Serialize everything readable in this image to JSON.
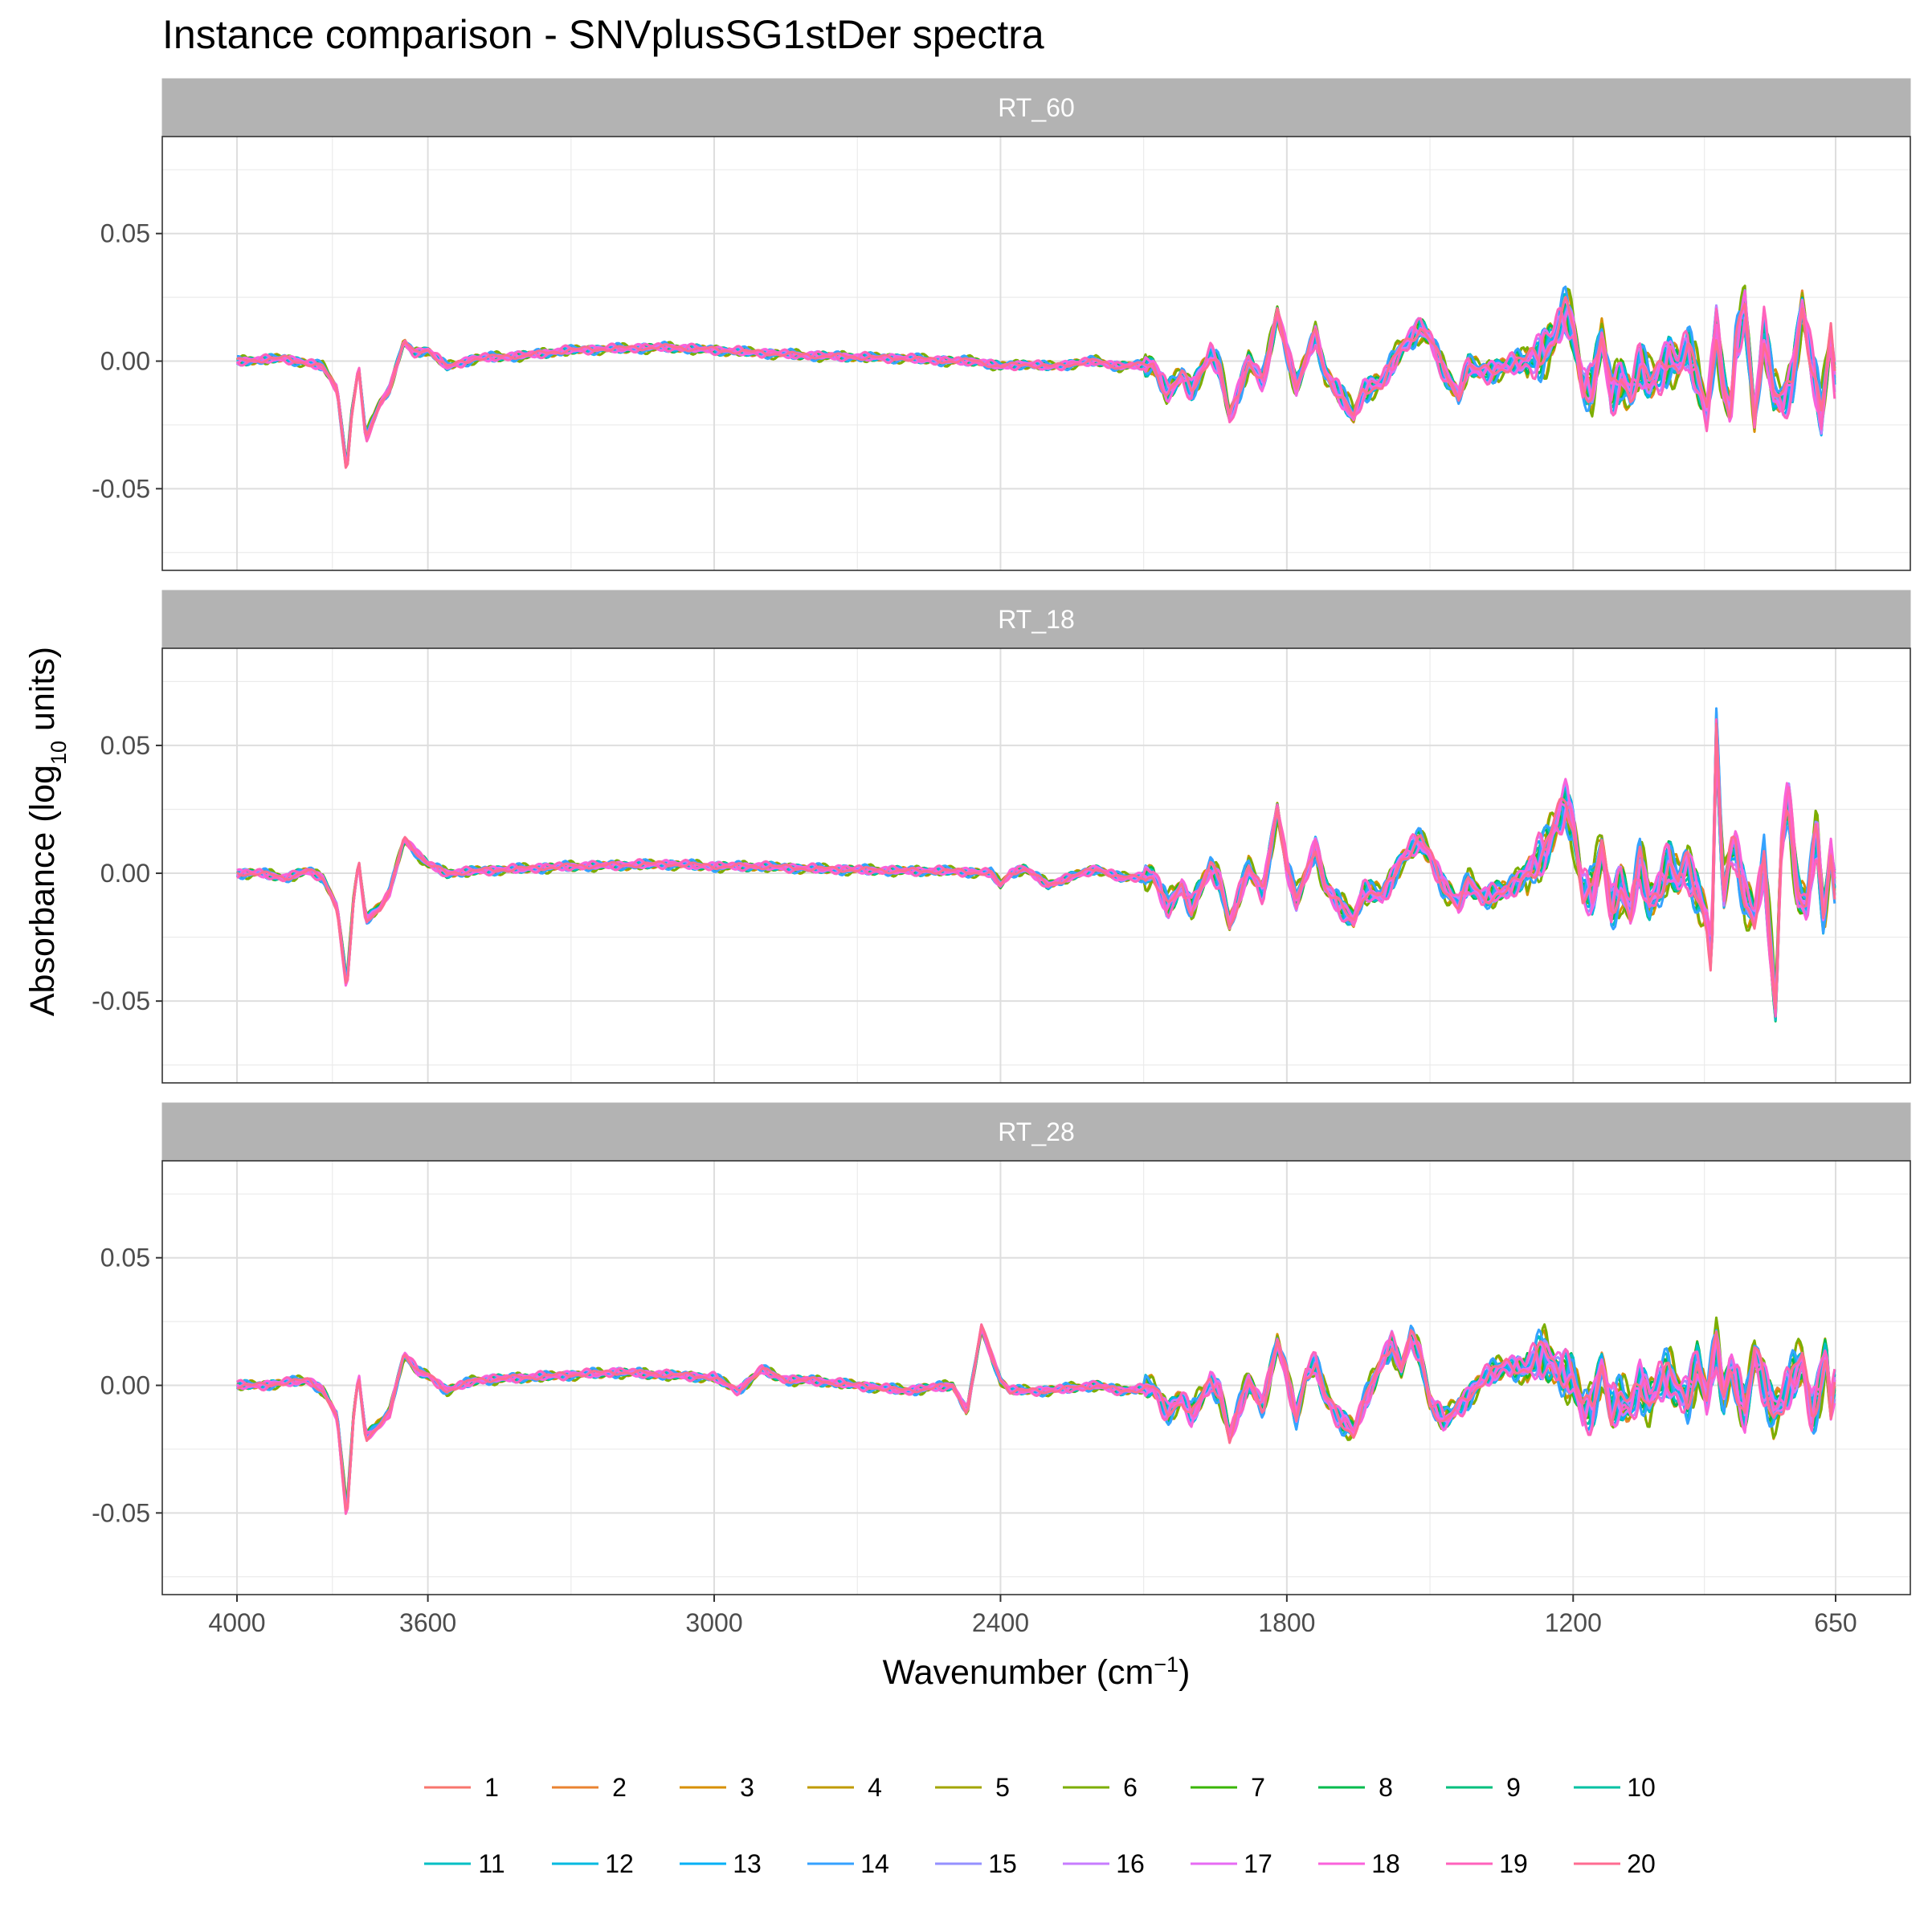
{
  "chart_data": {
    "type": "line",
    "title": "Instance comparison - SNVplusSG1stDer spectra",
    "xlabel": {
      "main": "Wavenumber (cm",
      "sup": "−1",
      "close": ")"
    },
    "ylabel": {
      "main": "Absorbance (log",
      "sub": "10",
      "close": " units)"
    },
    "x_ticks": [
      {
        "value": 4000,
        "label": "4000"
      },
      {
        "value": 3600,
        "label": "3600"
      },
      {
        "value": 3000,
        "label": "3000"
      },
      {
        "value": 2400,
        "label": "2400"
      },
      {
        "value": 1800,
        "label": "1800"
      },
      {
        "value": 1200,
        "label": "1200"
      },
      {
        "value": 650,
        "label": "650"
      }
    ],
    "x_axis_reversed": true,
    "x_range": [
      4000,
      650
    ],
    "y_ticks": [
      {
        "value": 0.05,
        "label": "0.05"
      },
      {
        "value": 0.0,
        "label": "0.00"
      },
      {
        "value": -0.05,
        "label": "-0.05"
      }
    ],
    "ylim": [
      -0.082,
      0.088
    ],
    "grid": true,
    "legend_position": "bottom",
    "series_names": [
      "1",
      "2",
      "3",
      "4",
      "5",
      "6",
      "7",
      "8",
      "9",
      "10",
      "11",
      "12",
      "13",
      "14",
      "15",
      "16",
      "17",
      "18",
      "19",
      "20"
    ],
    "series_colors": [
      "#F8766D",
      "#EA8331",
      "#D89000",
      "#C09B00",
      "#A3A500",
      "#7CAE00",
      "#39B600",
      "#00BB4E",
      "#00BF7D",
      "#00C1A3",
      "#00BFC4",
      "#00BAE0",
      "#00B0F6",
      "#35A2FF",
      "#9590FF",
      "#C77CFF",
      "#E76BF3",
      "#FA62DB",
      "#FF62BC",
      "#FF6C91"
    ],
    "panels": [
      {
        "label": "RT_60",
        "profile": [
          [
            4000,
            0
          ],
          [
            3900,
            0.001
          ],
          [
            3820,
            -0.002
          ],
          [
            3790,
            -0.01
          ],
          [
            3770,
            -0.04
          ],
          [
            3760,
            -0.02
          ],
          [
            3745,
            -0.002
          ],
          [
            3730,
            -0.028
          ],
          [
            3700,
            -0.015
          ],
          [
            3680,
            -0.01
          ],
          [
            3650,
            0.007
          ],
          [
            3630,
            0.003
          ],
          [
            3600,
            0.004
          ],
          [
            3560,
            -0.002
          ],
          [
            3500,
            0.001
          ],
          [
            3400,
            0.002
          ],
          [
            3300,
            0.004
          ],
          [
            3100,
            0.005
          ],
          [
            3000,
            0.004
          ],
          [
            2900,
            0.003
          ],
          [
            2800,
            0.002
          ],
          [
            2600,
            0.001
          ],
          [
            2500,
            0
          ],
          [
            2450,
            0
          ],
          [
            2400,
            -0.002
          ],
          [
            2350,
            -0.001
          ],
          [
            2300,
            -0.002
          ],
          [
            2200,
            0
          ],
          [
            2150,
            -0.002
          ],
          [
            2080,
            -0.001
          ],
          [
            2050,
            -0.012
          ],
          [
            2020,
            -0.005
          ],
          [
            2000,
            -0.01
          ],
          [
            1960,
            0.002
          ],
          [
            1940,
            -0.003
          ],
          [
            1920,
            -0.02
          ],
          [
            1880,
            0
          ],
          [
            1850,
            -0.008
          ],
          [
            1820,
            0.018
          ],
          [
            1800,
            0.004
          ],
          [
            1780,
            -0.01
          ],
          [
            1740,
            0.01
          ],
          [
            1720,
            -0.004
          ],
          [
            1690,
            -0.012
          ],
          [
            1660,
            -0.02
          ],
          [
            1640,
            -0.01
          ],
          [
            1600,
            -0.008
          ],
          [
            1560,
            0.005
          ],
          [
            1520,
            0.012
          ],
          [
            1500,
            0.008
          ],
          [
            1470,
            -0.004
          ],
          [
            1440,
            -0.012
          ],
          [
            1420,
            -0.002
          ],
          [
            1390,
            -0.004
          ],
          [
            1340,
            -0.002
          ],
          [
            1300,
            0
          ],
          [
            1260,
            0.004
          ],
          [
            1240,
            0.008
          ],
          [
            1215,
            0.018
          ],
          [
            1200,
            0.012
          ],
          [
            1180,
            -0.008
          ],
          [
            1160,
            -0.01
          ],
          [
            1140,
            0.008
          ],
          [
            1120,
            -0.012
          ],
          [
            1100,
            -0.005
          ],
          [
            1080,
            -0.012
          ],
          [
            1060,
            -0.002
          ],
          [
            1040,
            -0.008
          ],
          [
            1020,
            -0.004
          ],
          [
            1000,
            0.002
          ],
          [
            980,
            -0.002
          ],
          [
            960,
            0.004
          ],
          [
            940,
            -0.006
          ],
          [
            920,
            -0.018
          ],
          [
            900,
            0.012
          ],
          [
            885,
            -0.01
          ],
          [
            870,
            -0.02
          ],
          [
            860,
            0.004
          ],
          [
            840,
            0.02
          ],
          [
            820,
            -0.02
          ],
          [
            800,
            0.01
          ],
          [
            780,
            -0.012
          ],
          [
            760,
            -0.015
          ],
          [
            740,
            -0.005
          ],
          [
            720,
            0.02
          ],
          [
            700,
            -0.002
          ],
          [
            680,
            -0.02
          ],
          [
            660,
            0.01
          ],
          [
            652,
            -0.005
          ],
          [
            650,
            -0.004
          ]
        ],
        "spread": 0.14
      },
      {
        "label": "RT_18",
        "profile": [
          [
            4000,
            0
          ],
          [
            3950,
            0
          ],
          [
            3900,
            -0.002
          ],
          [
            3850,
            0.001
          ],
          [
            3820,
            -0.002
          ],
          [
            3790,
            -0.015
          ],
          [
            3770,
            -0.05
          ],
          [
            3755,
            -0.01
          ],
          [
            3745,
            0.005
          ],
          [
            3730,
            -0.02
          ],
          [
            3700,
            -0.015
          ],
          [
            3680,
            -0.008
          ],
          [
            3650,
            0.015
          ],
          [
            3620,
            0.008
          ],
          [
            3600,
            0.004
          ],
          [
            3560,
            0
          ],
          [
            3500,
            0.001
          ],
          [
            3400,
            0.002
          ],
          [
            3300,
            0.003
          ],
          [
            3100,
            0.004
          ],
          [
            3000,
            0.003
          ],
          [
            2900,
            0.003
          ],
          [
            2800,
            0.002
          ],
          [
            2600,
            0.001
          ],
          [
            2500,
            0.001
          ],
          [
            2420,
            0
          ],
          [
            2400,
            -0.005
          ],
          [
            2380,
            0
          ],
          [
            2350,
            0.002
          ],
          [
            2300,
            -0.005
          ],
          [
            2200,
            0.002
          ],
          [
            2150,
            -0.002
          ],
          [
            2080,
            -0.001
          ],
          [
            2050,
            -0.015
          ],
          [
            2020,
            -0.005
          ],
          [
            2000,
            -0.015
          ],
          [
            1960,
            0.002
          ],
          [
            1940,
            -0.003
          ],
          [
            1920,
            -0.022
          ],
          [
            1880,
            0.002
          ],
          [
            1850,
            -0.008
          ],
          [
            1820,
            0.028
          ],
          [
            1800,
            0.002
          ],
          [
            1780,
            -0.012
          ],
          [
            1740,
            0.012
          ],
          [
            1720,
            -0.006
          ],
          [
            1690,
            -0.014
          ],
          [
            1660,
            -0.02
          ],
          [
            1640,
            -0.008
          ],
          [
            1600,
            -0.01
          ],
          [
            1560,
            0.006
          ],
          [
            1520,
            0.014
          ],
          [
            1500,
            0.008
          ],
          [
            1470,
            -0.006
          ],
          [
            1440,
            -0.014
          ],
          [
            1420,
            -0.004
          ],
          [
            1390,
            -0.01
          ],
          [
            1340,
            -0.008
          ],
          [
            1300,
            0
          ],
          [
            1260,
            0.008
          ],
          [
            1240,
            0.02
          ],
          [
            1215,
            0.032
          ],
          [
            1200,
            0.02
          ],
          [
            1180,
            -0.008
          ],
          [
            1160,
            -0.01
          ],
          [
            1140,
            0.012
          ],
          [
            1120,
            -0.014
          ],
          [
            1100,
            -0.005
          ],
          [
            1080,
            -0.018
          ],
          [
            1060,
            0.005
          ],
          [
            1040,
            -0.012
          ],
          [
            1020,
            -0.006
          ],
          [
            1000,
            0.004
          ],
          [
            980,
            -0.004
          ],
          [
            960,
            0.004
          ],
          [
            940,
            -0.008
          ],
          [
            920,
            -0.02
          ],
          [
            910,
            -0.04
          ],
          [
            900,
            0.06
          ],
          [
            885,
            -0.01
          ],
          [
            870,
            0.01
          ],
          [
            860,
            0.012
          ],
          [
            840,
            -0.01
          ],
          [
            820,
            -0.02
          ],
          [
            800,
            0.004
          ],
          [
            785,
            -0.035
          ],
          [
            775,
            -0.06
          ],
          [
            765,
            0.01
          ],
          [
            750,
            0.035
          ],
          [
            730,
            -0.01
          ],
          [
            710,
            -0.015
          ],
          [
            690,
            0.02
          ],
          [
            675,
            -0.02
          ],
          [
            660,
            0.01
          ],
          [
            652,
            -0.005
          ],
          [
            650,
            -0.02
          ]
        ],
        "spread": 0.16
      },
      {
        "label": "RT_28",
        "profile": [
          [
            4000,
            0
          ],
          [
            3950,
            0
          ],
          [
            3900,
            0.001
          ],
          [
            3850,
            0.002
          ],
          [
            3820,
            -0.002
          ],
          [
            3790,
            -0.012
          ],
          [
            3770,
            -0.05
          ],
          [
            3755,
            -0.01
          ],
          [
            3745,
            0.004
          ],
          [
            3730,
            -0.02
          ],
          [
            3700,
            -0.015
          ],
          [
            3680,
            -0.01
          ],
          [
            3650,
            0.012
          ],
          [
            3620,
            0.005
          ],
          [
            3600,
            0.004
          ],
          [
            3560,
            -0.002
          ],
          [
            3500,
            0.002
          ],
          [
            3400,
            0.003
          ],
          [
            3300,
            0.004
          ],
          [
            3200,
            0.005
          ],
          [
            3100,
            0.004
          ],
          [
            3000,
            0.003
          ],
          [
            2950,
            -0.002
          ],
          [
            2900,
            0.006
          ],
          [
            2850,
            0.002
          ],
          [
            2800,
            0.002
          ],
          [
            2700,
            0
          ],
          [
            2600,
            -0.002
          ],
          [
            2550,
            -0.001
          ],
          [
            2500,
            0
          ],
          [
            2470,
            -0.01
          ],
          [
            2440,
            0.022
          ],
          [
            2420,
            0.012
          ],
          [
            2400,
            0.002
          ],
          [
            2380,
            -0.002
          ],
          [
            2300,
            -0.002
          ],
          [
            2200,
            0
          ],
          [
            2150,
            -0.002
          ],
          [
            2080,
            -0.001
          ],
          [
            2050,
            -0.01
          ],
          [
            2020,
            -0.005
          ],
          [
            2000,
            -0.012
          ],
          [
            1960,
            0.002
          ],
          [
            1940,
            -0.003
          ],
          [
            1920,
            -0.02
          ],
          [
            1880,
            0.002
          ],
          [
            1850,
            -0.008
          ],
          [
            1820,
            0.016
          ],
          [
            1800,
            0.004
          ],
          [
            1780,
            -0.012
          ],
          [
            1760,
            0.004
          ],
          [
            1740,
            0.008
          ],
          [
            1720,
            -0.004
          ],
          [
            1690,
            -0.012
          ],
          [
            1660,
            -0.018
          ],
          [
            1640,
            -0.008
          ],
          [
            1600,
            0.01
          ],
          [
            1580,
            0.016
          ],
          [
            1560,
            0.006
          ],
          [
            1540,
            0.018
          ],
          [
            1520,
            0.012
          ],
          [
            1500,
            -0.006
          ],
          [
            1470,
            -0.014
          ],
          [
            1440,
            -0.008
          ],
          [
            1420,
            -0.004
          ],
          [
            1390,
            0.002
          ],
          [
            1340,
            0.008
          ],
          [
            1300,
            0.006
          ],
          [
            1260,
            0.012
          ],
          [
            1240,
            0.008
          ],
          [
            1215,
            0.004
          ],
          [
            1200,
            0.002
          ],
          [
            1180,
            -0.01
          ],
          [
            1160,
            -0.008
          ],
          [
            1140,
            0.008
          ],
          [
            1120,
            -0.01
          ],
          [
            1100,
            -0.006
          ],
          [
            1080,
            -0.008
          ],
          [
            1060,
            0.002
          ],
          [
            1040,
            -0.006
          ],
          [
            1020,
            0
          ],
          [
            1000,
            0.004
          ],
          [
            980,
            -0.002
          ],
          [
            960,
            -0.004
          ],
          [
            940,
            0.008
          ],
          [
            920,
            -0.006
          ],
          [
            900,
            0.016
          ],
          [
            885,
            -0.004
          ],
          [
            870,
            0.008
          ],
          [
            860,
            0.002
          ],
          [
            840,
            -0.012
          ],
          [
            820,
            0.012
          ],
          [
            800,
            0.002
          ],
          [
            780,
            -0.01
          ],
          [
            760,
            -0.006
          ],
          [
            740,
            0.002
          ],
          [
            720,
            0.01
          ],
          [
            700,
            -0.01
          ],
          [
            685,
            -0.002
          ],
          [
            670,
            0.012
          ],
          [
            660,
            -0.01
          ],
          [
            652,
            0
          ],
          [
            650,
            -0.003
          ]
        ],
        "spread": 0.18
      }
    ]
  }
}
